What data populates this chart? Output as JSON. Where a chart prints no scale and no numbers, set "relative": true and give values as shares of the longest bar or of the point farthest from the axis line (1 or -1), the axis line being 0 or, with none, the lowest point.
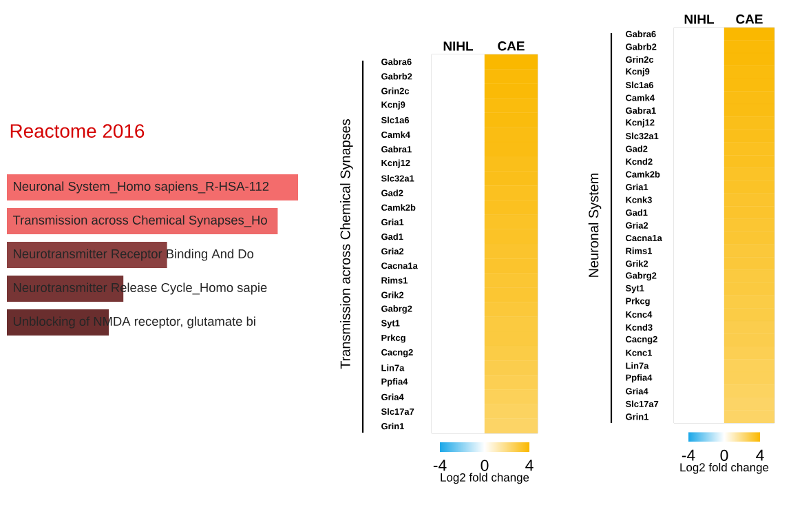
{
  "chart_data": [
    {
      "type": "bar",
      "orientation": "horizontal",
      "relative": true,
      "title": "Reactome 2016",
      "categories": [
        "Neuronal System_Homo sapiens_R-HSA-112",
        "Transmission across Chemical Synapses_Ho",
        "Neurotransmitter Receptor Binding And Do",
        "Neurotransmitter Release Cycle_Homo sapie",
        "Unblocking of NMDA receptor, glutamate bi"
      ],
      "values": [
        1,
        0.93,
        0.55,
        0.4,
        0.35
      ],
      "colors": [
        "#f36c6c",
        "#ee6a6a",
        "#8b4141",
        "#773535",
        "#6a2e2e"
      ]
    },
    {
      "type": "heatmap",
      "ylabel": "Transmission across Chemical Synapses",
      "clabel": "Log2 fold change",
      "categories": [
        "NIHL",
        "CAE"
      ],
      "y_categories": [
        "Gabra6",
        "Gabrb2",
        "Grin2c",
        "Kcnj9",
        "Slc1a6",
        "Camk4",
        "Gabra1",
        "Kcnj12",
        "Slc32a1",
        "Gad2",
        "Camk2b",
        "Gria1",
        "Gad1",
        "Gria2",
        "Cacna1a",
        "Rims1",
        "Grik2",
        "Gabrg2",
        "Syt1",
        "Prkcg",
        "Cacng2",
        "Lin7a",
        "Ppfia4",
        "Gria4",
        "Slc17a7",
        "Grin1"
      ],
      "cells": [
        [
          0,
          4.0
        ],
        [
          0,
          3.9
        ],
        [
          0,
          3.9
        ],
        [
          0,
          3.8
        ],
        [
          0,
          3.8
        ],
        [
          0,
          3.7
        ],
        [
          0,
          3.7
        ],
        [
          0,
          3.6
        ],
        [
          0,
          3.6
        ],
        [
          0,
          3.5
        ],
        [
          0,
          3.5
        ],
        [
          0,
          3.4
        ],
        [
          0,
          3.4
        ],
        [
          0,
          3.3
        ],
        [
          0,
          3.3
        ],
        [
          0,
          3.2
        ],
        [
          0,
          3.2
        ],
        [
          0,
          3.1
        ],
        [
          0,
          3.0
        ],
        [
          0,
          3.0
        ],
        [
          0,
          2.9
        ],
        [
          0,
          2.8
        ],
        [
          0,
          2.7
        ],
        [
          0,
          2.6
        ],
        [
          0,
          2.5
        ],
        [
          0,
          2.4
        ]
      ],
      "clim": [
        -4,
        4
      ],
      "cticks": [
        -4,
        0,
        4
      ]
    },
    {
      "type": "heatmap",
      "ylabel": "Neuronal System",
      "clabel": "Log2 fold change",
      "categories": [
        "NIHL",
        "CAE"
      ],
      "y_categories": [
        "Gabra6",
        "Gabrb2",
        "Grin2c",
        "Kcnj9",
        "Slc1a6",
        "Camk4",
        "Gabra1",
        "Kcnj12",
        "Slc32a1",
        "Gad2",
        "Kcnd2",
        "Camk2b",
        "Gria1",
        "Kcnk3",
        "Gad1",
        "Gria2",
        "Cacna1a",
        "Rims1",
        "Grik2",
        "Gabrg2",
        "Syt1",
        "Prkcg",
        "Kcnc4",
        "Kcnd3",
        "Cacng2",
        "Kcnc1",
        "Lin7a",
        "Ppfia4",
        "Gria4",
        "Slc17a7",
        "Grin1"
      ],
      "cells": [
        [
          0,
          4.0
        ],
        [
          0,
          3.9
        ],
        [
          0,
          3.9
        ],
        [
          0,
          3.8
        ],
        [
          0,
          3.8
        ],
        [
          0,
          3.7
        ],
        [
          0,
          3.7
        ],
        [
          0,
          3.6
        ],
        [
          0,
          3.6
        ],
        [
          0,
          3.5
        ],
        [
          0,
          3.5
        ],
        [
          0,
          3.4
        ],
        [
          0,
          3.4
        ],
        [
          0,
          3.3
        ],
        [
          0,
          3.3
        ],
        [
          0,
          3.2
        ],
        [
          0,
          3.2
        ],
        [
          0,
          3.1
        ],
        [
          0,
          3.1
        ],
        [
          0,
          3.0
        ],
        [
          0,
          3.0
        ],
        [
          0,
          2.9
        ],
        [
          0,
          2.9
        ],
        [
          0,
          2.8
        ],
        [
          0,
          2.8
        ],
        [
          0,
          2.7
        ],
        [
          0,
          2.6
        ],
        [
          0,
          2.6
        ],
        [
          0,
          2.5
        ],
        [
          0,
          2.4
        ],
        [
          0,
          2.4
        ]
      ],
      "clim": [
        -4,
        4
      ],
      "cticks": [
        -4,
        0,
        4
      ]
    }
  ]
}
